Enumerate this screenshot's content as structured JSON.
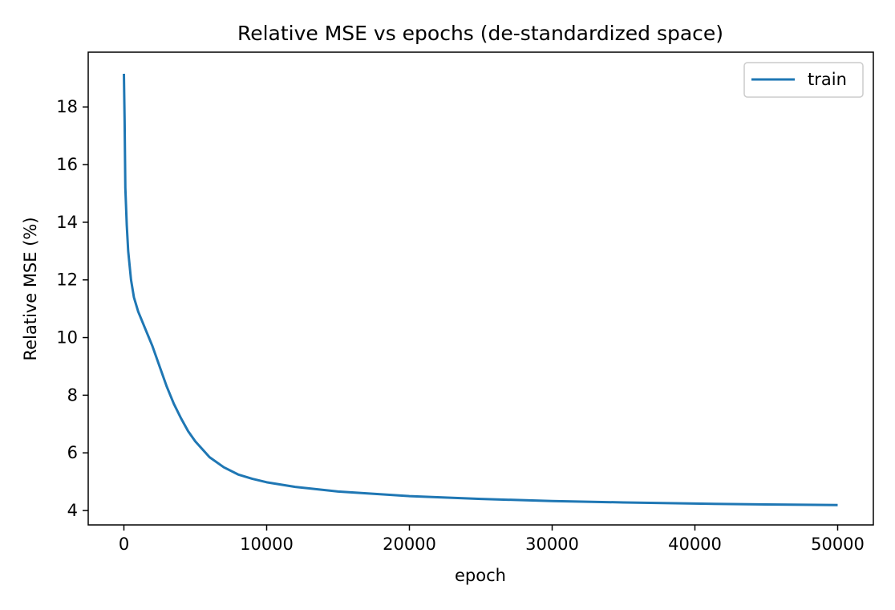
{
  "chart_data": {
    "type": "line",
    "title": "Relative MSE vs epochs (de-standardized space)",
    "xlabel": "epoch",
    "ylabel": "Relative MSE (%)",
    "xlim": [
      -2500,
      52500
    ],
    "ylim": [
      3.5,
      19.9
    ],
    "xticks": [
      0,
      10000,
      20000,
      30000,
      40000,
      50000
    ],
    "xtick_labels": [
      "0",
      "10000",
      "20000",
      "30000",
      "40000",
      "50000"
    ],
    "yticks": [
      4,
      6,
      8,
      10,
      12,
      14,
      16,
      18
    ],
    "ytick_labels": [
      "4",
      "6",
      "8",
      "10",
      "12",
      "14",
      "16",
      "18"
    ],
    "grid": false,
    "legend": {
      "position": "top-right"
    },
    "series": [
      {
        "name": "train",
        "color": "#1f77b4",
        "x": [
          0,
          50,
          100,
          200,
          300,
          500,
          700,
          1000,
          1500,
          2000,
          2500,
          3000,
          3500,
          4000,
          4500,
          5000,
          6000,
          7000,
          8000,
          9000,
          10000,
          12000,
          15000,
          20000,
          25000,
          30000,
          35000,
          40000,
          45000,
          50000
        ],
        "values": [
          19.15,
          17.5,
          15.2,
          13.9,
          13.0,
          12.0,
          11.4,
          10.9,
          10.3,
          9.7,
          9.0,
          8.3,
          7.7,
          7.2,
          6.75,
          6.4,
          5.85,
          5.5,
          5.25,
          5.1,
          4.98,
          4.82,
          4.66,
          4.5,
          4.4,
          4.33,
          4.28,
          4.24,
          4.21,
          4.19
        ]
      }
    ]
  }
}
